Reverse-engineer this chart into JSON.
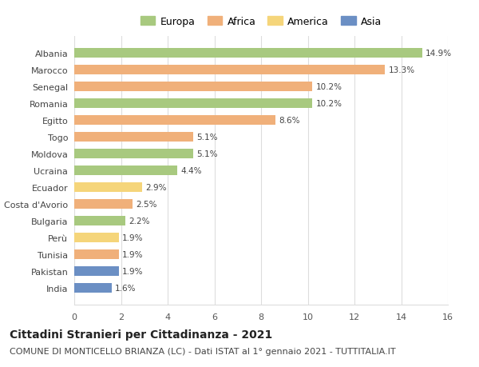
{
  "countries": [
    "India",
    "Pakistan",
    "Tunisia",
    "Perù",
    "Bulgaria",
    "Costa d'Avorio",
    "Ecuador",
    "Ucraina",
    "Moldova",
    "Togo",
    "Egitto",
    "Romania",
    "Senegal",
    "Marocco",
    "Albania"
  ],
  "values": [
    1.6,
    1.9,
    1.9,
    1.9,
    2.2,
    2.5,
    2.9,
    4.4,
    5.1,
    5.1,
    8.6,
    10.2,
    10.2,
    13.3,
    14.9
  ],
  "continents": [
    "Asia",
    "Asia",
    "Africa",
    "America",
    "Europa",
    "Africa",
    "America",
    "Europa",
    "Europa",
    "Africa",
    "Africa",
    "Europa",
    "Africa",
    "Africa",
    "Europa"
  ],
  "colors": {
    "Europa": "#a8c97f",
    "Africa": "#f0b07a",
    "America": "#f5d57a",
    "Asia": "#6b8fc4"
  },
  "legend_order": [
    "Europa",
    "Africa",
    "America",
    "Asia"
  ],
  "xlim": [
    0,
    16
  ],
  "xticks": [
    0,
    2,
    4,
    6,
    8,
    10,
    12,
    14,
    16
  ],
  "title": "Cittadini Stranieri per Cittadinanza - 2021",
  "subtitle": "COMUNE DI MONTICELLO BRIANZA (LC) - Dati ISTAT al 1° gennaio 2021 - TUTTITALIA.IT",
  "title_fontsize": 10,
  "subtitle_fontsize": 8,
  "bar_height": 0.55,
  "background_color": "#ffffff",
  "grid_color": "#dddddd"
}
